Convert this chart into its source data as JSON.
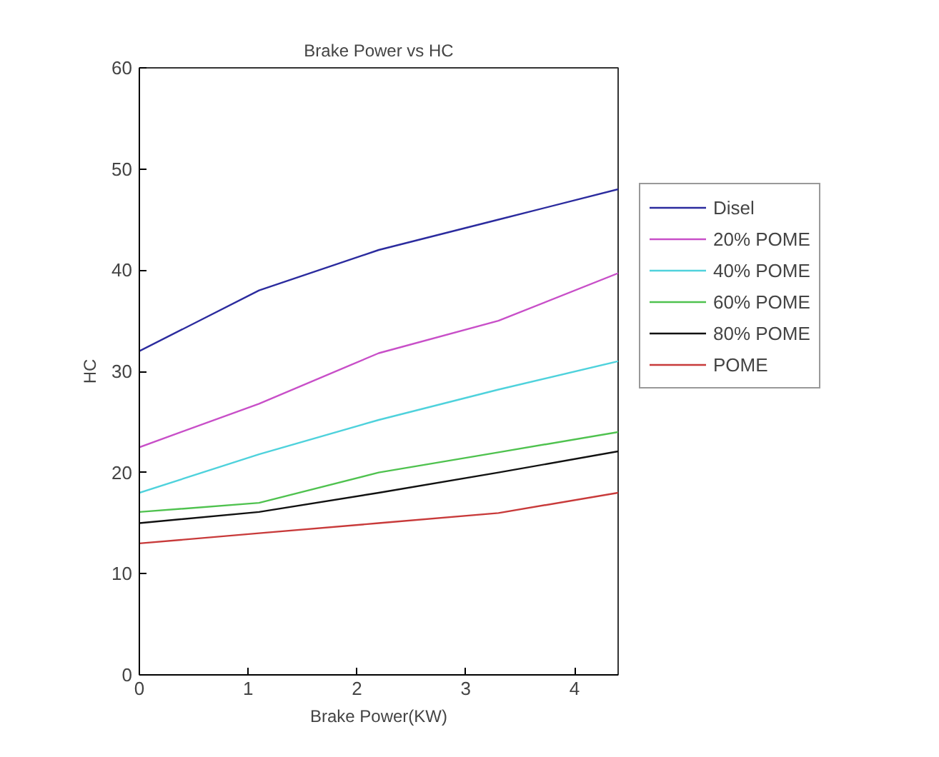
{
  "chart_data": {
    "type": "line",
    "title": "Brake Power vs HC",
    "xlabel": "Brake Power(KW)",
    "ylabel": "HC",
    "x": [
      0,
      1.1,
      2.2,
      3.3,
      4.4
    ],
    "xlim": [
      0,
      4.4
    ],
    "xticks": [
      0,
      1,
      2,
      3,
      4
    ],
    "ylim": [
      0,
      60
    ],
    "yticks": [
      0,
      10,
      20,
      30,
      40,
      50,
      60
    ],
    "grid": false,
    "legend": "right",
    "marker": "none",
    "line_style": "solid",
    "series": [
      {
        "name": "Disel",
        "color": "#2b2b9e",
        "values": [
          32,
          38,
          42,
          45,
          48
        ]
      },
      {
        "name": "20% POME",
        "color": "#c84fc8",
        "values": [
          22.5,
          26.8,
          31.8,
          35,
          39.7
        ]
      },
      {
        "name": "40% POME",
        "color": "#4fd2dc",
        "values": [
          18,
          21.8,
          25.2,
          28.2,
          31
        ]
      },
      {
        "name": "60% POME",
        "color": "#4fc24f",
        "values": [
          16.1,
          17,
          20,
          22,
          24
        ]
      },
      {
        "name": "80% POME",
        "color": "#111111",
        "values": [
          15,
          16.1,
          18,
          20,
          22.1
        ]
      },
      {
        "name": "POME",
        "color": "#c83a3a",
        "values": [
          13,
          14,
          15,
          16,
          18
        ]
      }
    ]
  }
}
